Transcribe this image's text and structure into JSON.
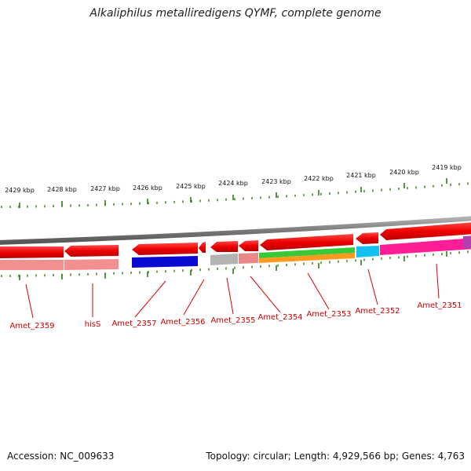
{
  "title": "Alkaliphilus metalliredigens QYMF, complete genome",
  "footer": {
    "accession": "Accession: NC_009633",
    "topology": "Topology: circular; Length: 4,929,566 bp; Genes: 4,763"
  },
  "scale": {
    "labels": [
      "2429 kbp",
      "2428 kbp",
      "2427 kbp",
      "2426 kbp",
      "2425 kbp",
      "2424 kbp",
      "2423 kbp",
      "2422 kbp",
      "2421 kbp",
      "2420 kbp",
      "2419 kbp"
    ]
  },
  "genes": [
    {
      "label": "Amet_2359",
      "color": "#ff0000",
      "cog_color": "#f08080"
    },
    {
      "label": "hisS",
      "color": "#ff0000",
      "cog_color": "#f08080"
    },
    {
      "label": "Amet_2357",
      "color": "#ff0000",
      "cog_color": "#0000cc"
    },
    {
      "label": "Amet_2356",
      "color": "#ff0000",
      "cog_color": ""
    },
    {
      "label": "Amet_2355",
      "color": "#ff0000",
      "cog_color": "#aaaaaa"
    },
    {
      "label": "Amet_2354",
      "color": "#ff0000",
      "cog_color": "#e08080"
    },
    {
      "label": "Amet_2353",
      "color": "#ff0000",
      "cog_color": "#33cc33"
    },
    {
      "label": "Amet_2352",
      "color": "#ff0000",
      "cog_color": "#00bbee"
    },
    {
      "label": "Amet_2351",
      "color": "#ff0000",
      "cog_color": "#ff1493"
    }
  ],
  "colors": {
    "backbone": "#888888",
    "tick": "#2e7d12",
    "label": "#cc0000",
    "leader": "#dd0000"
  }
}
